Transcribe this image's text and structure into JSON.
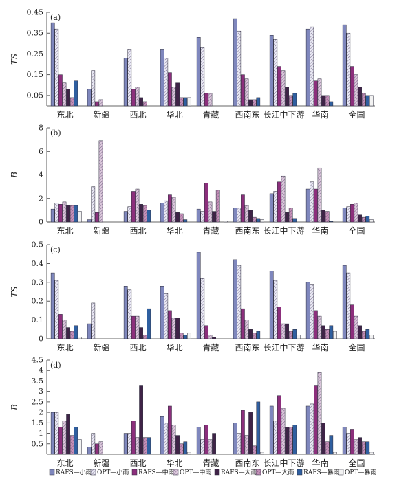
{
  "colors": {
    "RAFS-小雨": "#7f87bd",
    "OPT-小雨": "#e9e9f4",
    "RAFS-中雨": "#8c2f7c",
    "OPT-中雨": "#dcc8dc",
    "RAFS-大雨": "#3f2347",
    "OPT-大雨": "#c690b8",
    "RAFS-暴雨": "#2f5fa0",
    "OPT-暴雨": "#f2f2f2"
  },
  "hatched_series": [
    "OPT-小雨",
    "OPT-中雨",
    "OPT-大雨"
  ],
  "legend": [
    "RAFS—小雨",
    "OPT—小雨",
    "RAFS—中雨",
    "OPT—中雨",
    "RAFS—大雨",
    "OPT—大雨",
    "RAFS—暴雨",
    "OPT—暴雨"
  ],
  "chart_data": [
    {
      "type": "bar",
      "panel": "(a)",
      "ylabel": "TS",
      "ylim": [
        0,
        0.45
      ],
      "yticks": [
        0.05,
        0.15,
        0.25,
        0.35,
        0.45
      ],
      "ytick_labels": [
        "0.05",
        "0.15",
        "0.25",
        "0.35",
        "0.45"
      ],
      "categories": [
        "东北",
        "新疆",
        "西北",
        "华北",
        "青藏",
        "西南东",
        "长江中下游",
        "华南",
        "全国"
      ],
      "series": [
        {
          "name": "RAFS-小雨",
          "values": [
            0.4,
            0.08,
            0.23,
            0.27,
            0.33,
            0.42,
            0.34,
            0.37,
            0.39
          ]
        },
        {
          "name": "OPT-小雨",
          "values": [
            0.37,
            0.17,
            0.27,
            0.23,
            0.28,
            0.36,
            0.32,
            0.38,
            0.35
          ]
        },
        {
          "name": "RAFS-中雨",
          "values": [
            0.15,
            0.02,
            0.08,
            0.16,
            0.06,
            0.15,
            0.19,
            0.12,
            0.19
          ]
        },
        {
          "name": "OPT-中雨",
          "values": [
            0.11,
            0.03,
            0.09,
            0.09,
            0.06,
            0.13,
            0.17,
            0.13,
            0.15
          ]
        },
        {
          "name": "RAFS-大雨",
          "values": [
            0.08,
            0.0,
            0.04,
            0.11,
            0.0,
            0.03,
            0.09,
            0.05,
            0.09
          ]
        },
        {
          "name": "OPT-大雨",
          "values": [
            0.04,
            0.0,
            0.02,
            0.04,
            0.0,
            0.03,
            0.05,
            0.05,
            0.06
          ]
        },
        {
          "name": "RAFS-暴雨",
          "values": [
            0.12,
            0.0,
            0.0,
            0.04,
            0.0,
            0.04,
            0.06,
            0.02,
            0.05
          ]
        },
        {
          "name": "OPT-暴雨",
          "values": [
            0.0,
            0.0,
            0.0,
            0.04,
            0.0,
            0.0,
            0.0,
            0.0,
            0.05
          ]
        }
      ]
    },
    {
      "type": "bar",
      "panel": "(b)",
      "ylabel": "B",
      "ylim": [
        0,
        8
      ],
      "yticks": [
        0,
        2,
        4,
        6,
        8
      ],
      "ytick_labels": [
        "0",
        "2",
        "4",
        "6",
        "8"
      ],
      "categories": [
        "东北",
        "新疆",
        "西北",
        "华北",
        "青藏",
        "西南东",
        "长江中下游",
        "华南",
        "全国"
      ],
      "series": [
        {
          "name": "RAFS-小雨",
          "values": [
            1.1,
            0.2,
            0.9,
            1.6,
            1.1,
            1.2,
            2.4,
            2.8,
            1.2
          ]
        },
        {
          "name": "OPT-小雨",
          "values": [
            1.6,
            3.0,
            1.3,
            1.8,
            0.9,
            1.2,
            2.6,
            3.4,
            1.3
          ]
        },
        {
          "name": "RAFS-中雨",
          "values": [
            1.5,
            0.8,
            2.6,
            2.3,
            3.3,
            2.3,
            3.4,
            2.8,
            1.5
          ]
        },
        {
          "name": "OPT-中雨",
          "values": [
            1.7,
            6.9,
            2.8,
            2.1,
            1.7,
            1.4,
            3.9,
            4.6,
            1.6
          ]
        },
        {
          "name": "RAFS-大雨",
          "values": [
            1.4,
            0.0,
            1.5,
            0.8,
            0.9,
            1.0,
            0.8,
            1.0,
            0.6
          ]
        },
        {
          "name": "OPT-大雨",
          "values": [
            1.4,
            0.0,
            1.4,
            0.7,
            2.7,
            0.4,
            1.2,
            0.9,
            0.4
          ]
        },
        {
          "name": "RAFS-暴雨",
          "values": [
            1.4,
            0.0,
            1.0,
            0.2,
            0.0,
            0.3,
            0.3,
            0.05,
            0.5
          ]
        },
        {
          "name": "OPT-暴雨",
          "values": [
            0.9,
            0.0,
            0.0,
            0.0,
            0.1,
            0.2,
            0.0,
            0.0,
            0.2
          ]
        }
      ]
    },
    {
      "type": "bar",
      "panel": "(c)",
      "ylabel": "TS",
      "ylim": [
        0,
        0.5
      ],
      "yticks": [
        0,
        0.1,
        0.2,
        0.3,
        0.4,
        0.5
      ],
      "ytick_labels": [
        "0",
        "0.1",
        "0.2",
        "0.3",
        "0.4",
        "0.5"
      ],
      "categories": [
        "东北",
        "新疆",
        "西北",
        "华北",
        "青藏",
        "西南东",
        "长江中下游",
        "华南",
        "全国"
      ],
      "series": [
        {
          "name": "RAFS-小雨",
          "values": [
            0.35,
            0.08,
            0.28,
            0.28,
            0.46,
            0.42,
            0.36,
            0.3,
            0.39
          ]
        },
        {
          "name": "OPT-小雨",
          "values": [
            0.31,
            0.19,
            0.26,
            0.24,
            0.32,
            0.39,
            0.31,
            0.29,
            0.35
          ]
        },
        {
          "name": "RAFS-中雨",
          "values": [
            0.13,
            0.0,
            0.12,
            0.15,
            0.07,
            0.16,
            0.17,
            0.15,
            0.18
          ]
        },
        {
          "name": "OPT-中雨",
          "values": [
            0.1,
            0.0,
            0.12,
            0.11,
            0.02,
            0.1,
            0.08,
            0.12,
            0.12
          ]
        },
        {
          "name": "RAFS-大雨",
          "values": [
            0.06,
            0.0,
            0.06,
            0.11,
            0.01,
            0.05,
            0.08,
            0.07,
            0.07
          ]
        },
        {
          "name": "OPT-大雨",
          "values": [
            0.04,
            0.0,
            0.02,
            0.03,
            0.0,
            0.03,
            0.04,
            0.05,
            0.04
          ]
        },
        {
          "name": "RAFS-暴雨",
          "values": [
            0.07,
            0.0,
            0.16,
            0.02,
            0.0,
            0.04,
            0.05,
            0.07,
            0.05
          ]
        },
        {
          "name": "OPT-暴雨",
          "values": [
            0.01,
            0.0,
            0.0,
            0.03,
            0.0,
            0.0,
            0.02,
            0.04,
            0.02
          ]
        }
      ]
    },
    {
      "type": "bar",
      "panel": "(d)",
      "ylabel": "B",
      "ylim": [
        0,
        4.5
      ],
      "yticks": [
        0.5,
        1.0,
        1.5,
        2.0,
        2.5,
        3.0,
        3.5,
        4.0,
        4.5
      ],
      "ytick_labels": [
        "0.5",
        "1",
        "1.5",
        "2",
        "2.5",
        "3",
        "3.5",
        "4",
        "4.5"
      ],
      "categories": [
        "东北",
        "新疆",
        "西北",
        "华北",
        "青藏",
        "西南东",
        "长江中下游",
        "华南",
        "全国"
      ],
      "series": [
        {
          "name": "RAFS-小雨",
          "values": [
            2.0,
            0.35,
            1.0,
            1.8,
            1.3,
            1.5,
            2.3,
            2.3,
            1.3
          ]
        },
        {
          "name": "OPT-小雨",
          "values": [
            2.0,
            1.0,
            1.0,
            1.5,
            0.7,
            1.0,
            1.6,
            2.4,
            1.0
          ]
        },
        {
          "name": "RAFS-中雨",
          "values": [
            1.3,
            0.5,
            1.6,
            2.3,
            1.4,
            2.1,
            2.8,
            3.3,
            1.2
          ]
        },
        {
          "name": "OPT-中雨",
          "values": [
            1.6,
            0.6,
            0.8,
            1.4,
            0.7,
            0.9,
            2.2,
            3.9,
            0.7
          ]
        },
        {
          "name": "RAFS-大雨",
          "values": [
            1.9,
            0.0,
            3.3,
            0.9,
            1.0,
            2.0,
            1.3,
            1.5,
            0.8
          ]
        },
        {
          "name": "OPT-大雨",
          "values": [
            0.9,
            0.0,
            0.8,
            0.5,
            0.0,
            0.4,
            1.3,
            0.6,
            0.6
          ]
        },
        {
          "name": "RAFS-暴雨",
          "values": [
            1.3,
            0.0,
            0.8,
            0.6,
            0.0,
            2.5,
            1.4,
            0.9,
            0.6
          ]
        },
        {
          "name": "OPT-暴雨",
          "values": [
            0.7,
            0.0,
            0.0,
            0.1,
            0.0,
            0.1,
            0.0,
            0.1,
            0.1
          ]
        }
      ]
    }
  ]
}
